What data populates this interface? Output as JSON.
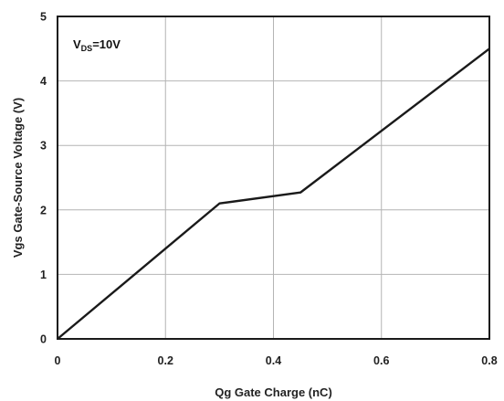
{
  "chart_data": {
    "type": "line",
    "title": "",
    "xlabel": "Qg Gate Charge (nC)",
    "ylabel": "Vgs Gate-Source Voltage (V)",
    "xlim": [
      0,
      0.8
    ],
    "ylim": [
      0,
      5
    ],
    "x_ticks": [
      0,
      0.2,
      0.4,
      0.6,
      0.8
    ],
    "x_tick_labels": [
      "0",
      "0.2",
      "0.4",
      "0.6",
      "0.8"
    ],
    "y_ticks": [
      0,
      1,
      2,
      3,
      4,
      5
    ],
    "y_tick_labels": [
      "0",
      "1",
      "2",
      "3",
      "4",
      "5"
    ],
    "grid": true,
    "annotation": {
      "main": "V",
      "sub": "DS",
      "suffix": "=10V"
    },
    "series": [
      {
        "x": [
          0,
          0.3,
          0.45,
          0.8
        ],
        "y": [
          0,
          2.1,
          2.27,
          4.5
        ]
      }
    ],
    "colors": {
      "line": "#1a1a1a",
      "grid": "#b4b4b4",
      "axes": "#1a1a1a"
    }
  }
}
